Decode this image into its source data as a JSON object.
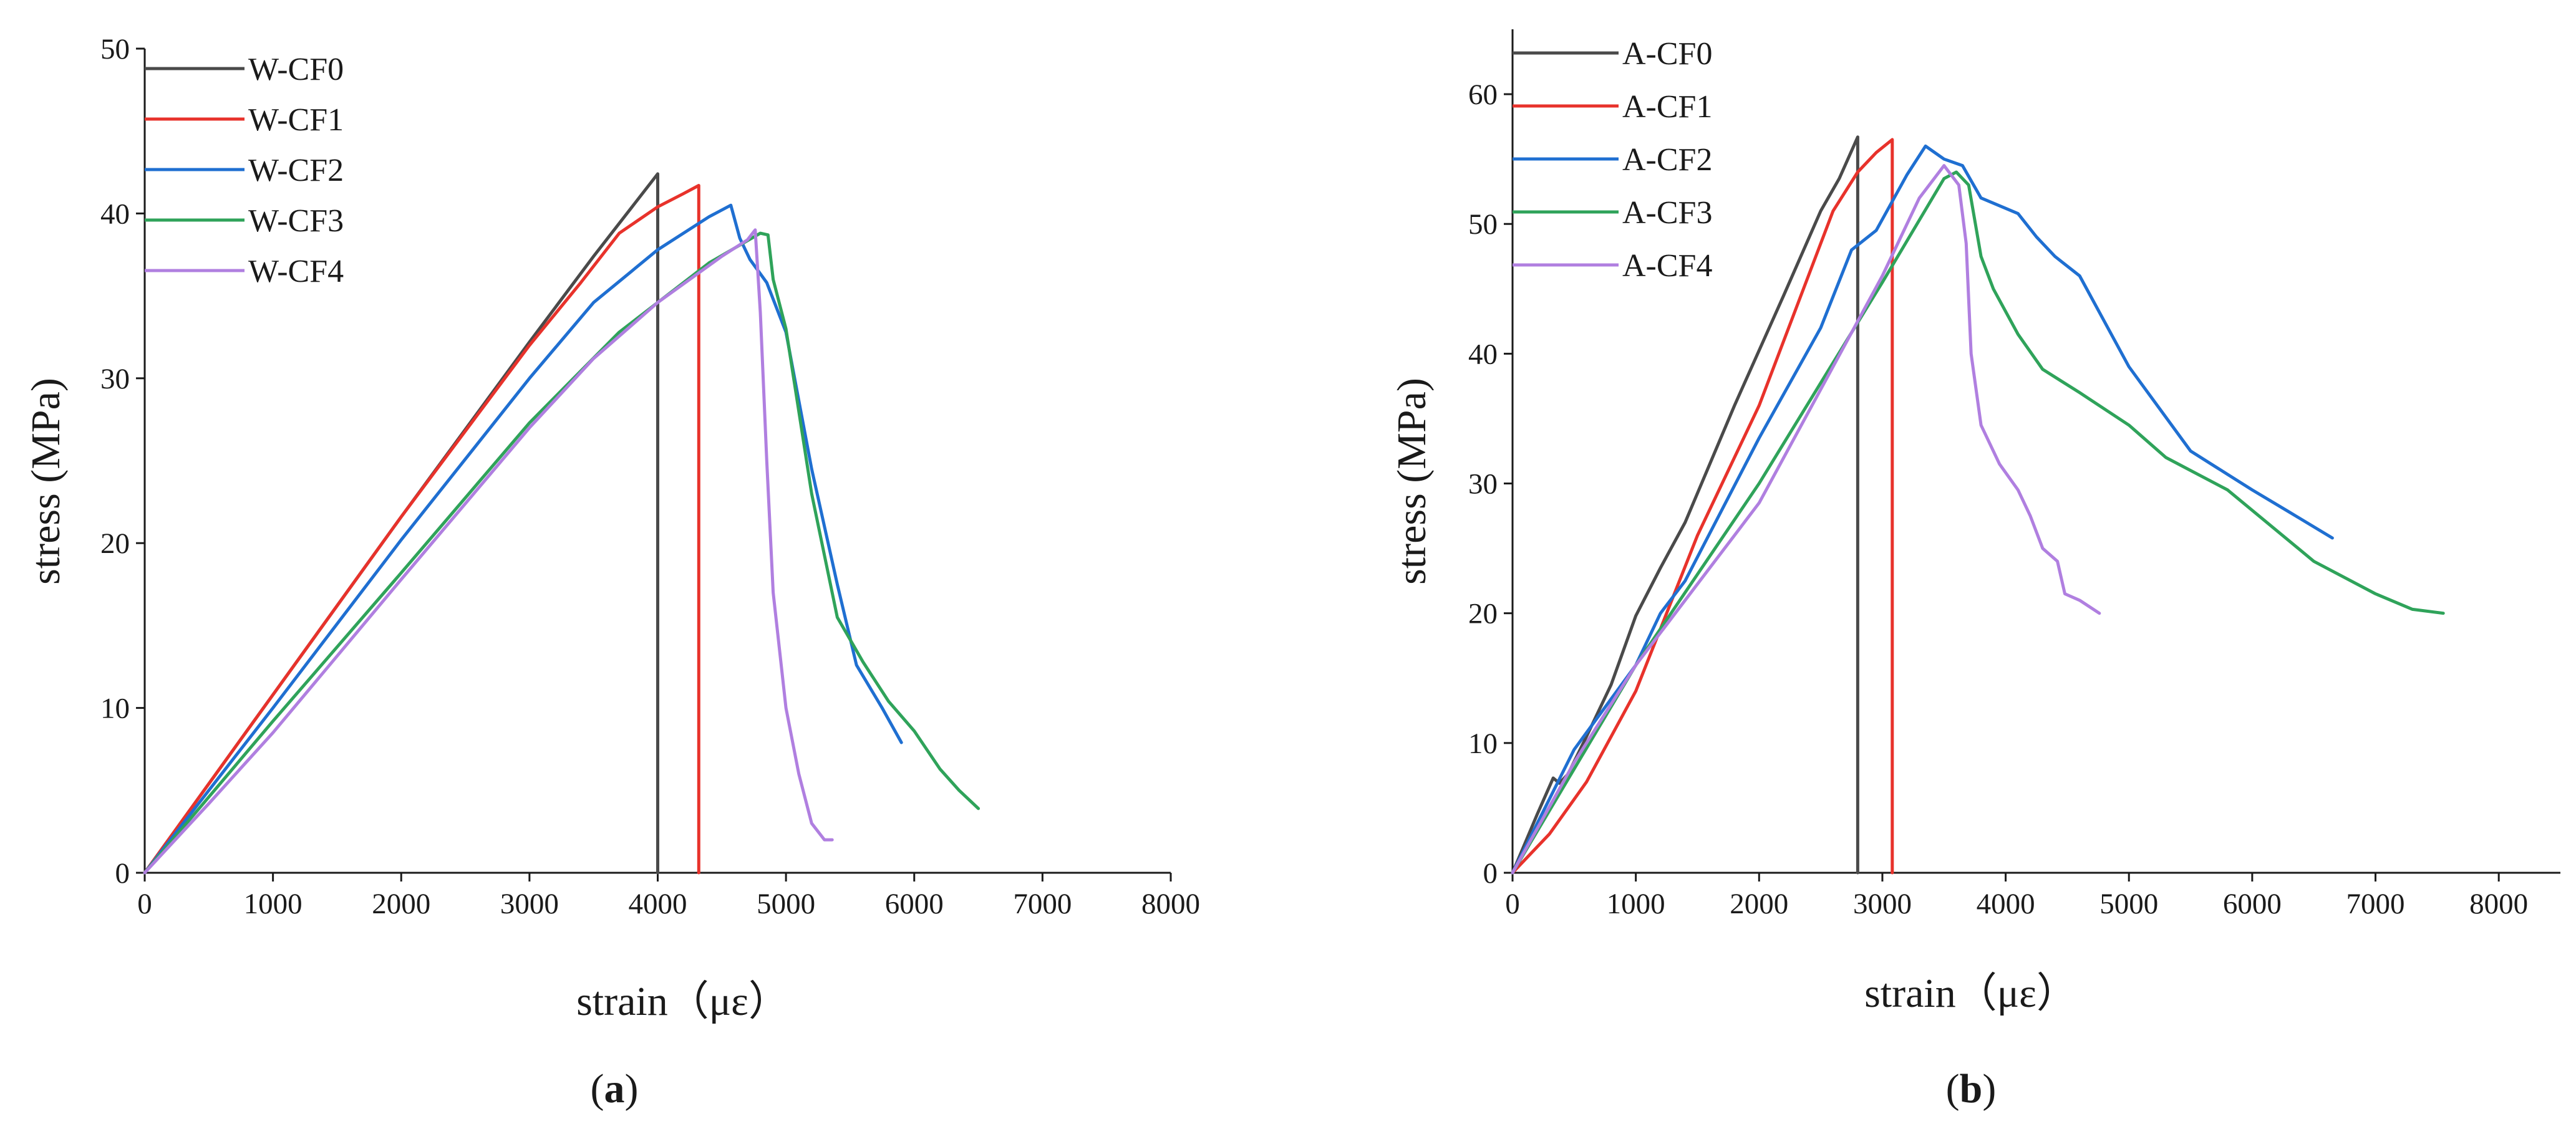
{
  "chart_data": [
    {
      "type": "line",
      "panel": "a",
      "panel_label_prefix": "(",
      "panel_label_letter": "a",
      "panel_label_suffix": ")",
      "xlabel": "strain（με）",
      "ylabel": "stress (MPa)",
      "xlim": [
        0,
        8000
      ],
      "ylim": [
        0,
        50
      ],
      "xticks": [
        0,
        1000,
        2000,
        3000,
        4000,
        5000,
        6000,
        7000,
        8000
      ],
      "yticks": [
        0,
        10,
        20,
        30,
        40,
        50
      ],
      "grid": false,
      "legend_position": "top-left",
      "series": [
        {
          "name": "W-CF0",
          "color": "#4a4a4a",
          "points": [
            [
              0,
              0
            ],
            [
              1000,
              10.8
            ],
            [
              2000,
              21.6
            ],
            [
              3000,
              32.2
            ],
            [
              3500,
              37.4
            ],
            [
              3800,
              40.4
            ],
            [
              4000,
              42.4
            ],
            [
              4000,
              0
            ]
          ]
        },
        {
          "name": "W-CF1",
          "color": "#e8322b",
          "points": [
            [
              0,
              0
            ],
            [
              1000,
              10.8
            ],
            [
              2000,
              21.6
            ],
            [
              3000,
              32.0
            ],
            [
              3400,
              35.8
            ],
            [
              3700,
              38.8
            ],
            [
              4000,
              40.4
            ],
            [
              4200,
              41.2
            ],
            [
              4320,
              41.7
            ],
            [
              4320,
              0
            ]
          ]
        },
        {
          "name": "W-CF2",
          "color": "#1f6fd1",
          "points": [
            [
              0,
              0
            ],
            [
              1000,
              10.0
            ],
            [
              2000,
              20.2
            ],
            [
              3000,
              30.0
            ],
            [
              3500,
              34.6
            ],
            [
              4000,
              37.8
            ],
            [
              4400,
              39.8
            ],
            [
              4570,
              40.5
            ],
            [
              4640,
              38.5
            ],
            [
              4720,
              37.2
            ],
            [
              4850,
              35.8
            ],
            [
              5000,
              32.8
            ],
            [
              5200,
              24.5
            ],
            [
              5400,
              17.5
            ],
            [
              5550,
              12.6
            ],
            [
              5750,
              10.0
            ],
            [
              5900,
              7.9
            ]
          ]
        },
        {
          "name": "W-CF3",
          "color": "#2fa35a",
          "points": [
            [
              0,
              0
            ],
            [
              1000,
              9.2
            ],
            [
              2000,
              18.2
            ],
            [
              3000,
              27.3
            ],
            [
              3700,
              32.8
            ],
            [
              4000,
              34.6
            ],
            [
              4400,
              37.0
            ],
            [
              4800,
              38.8
            ],
            [
              4860,
              38.7
            ],
            [
              4900,
              36.0
            ],
            [
              5000,
              33.0
            ],
            [
              5200,
              23.0
            ],
            [
              5400,
              15.5
            ],
            [
              5600,
              12.8
            ],
            [
              5800,
              10.4
            ],
            [
              6000,
              8.6
            ],
            [
              6200,
              6.3
            ],
            [
              6350,
              5.0
            ],
            [
              6500,
              3.9
            ]
          ]
        },
        {
          "name": "W-CF4",
          "color": "#b07fe0",
          "points": [
            [
              0,
              0
            ],
            [
              500,
              4.2
            ],
            [
              1000,
              8.5
            ],
            [
              2000,
              17.8
            ],
            [
              3000,
              27.0
            ],
            [
              3500,
              31.2
            ],
            [
              4000,
              34.6
            ],
            [
              4500,
              37.4
            ],
            [
              4700,
              38.4
            ],
            [
              4760,
              39.0
            ],
            [
              4800,
              34.0
            ],
            [
              4850,
              25.0
            ],
            [
              4900,
              17.0
            ],
            [
              5000,
              10.0
            ],
            [
              5100,
              6.0
            ],
            [
              5200,
              3.0
            ],
            [
              5300,
              2.0
            ],
            [
              5360,
              2.0
            ]
          ]
        }
      ]
    },
    {
      "type": "line",
      "panel": "b",
      "panel_label_prefix": "(",
      "panel_label_letter": "b",
      "panel_label_suffix": ")",
      "xlabel": "strain（με）",
      "ylabel": "stress (MPa)",
      "xlim": [
        0,
        8500
      ],
      "ylim": [
        0,
        65
      ],
      "xticks": [
        0,
        1000,
        2000,
        3000,
        4000,
        5000,
        6000,
        7000,
        8000
      ],
      "yticks": [
        0,
        10,
        20,
        30,
        40,
        50,
        60
      ],
      "grid": false,
      "legend_position": "top-left",
      "series": [
        {
          "name": "A-CF0",
          "color": "#4a4a4a",
          "points": [
            [
              0,
              0
            ],
            [
              200,
              4.5
            ],
            [
              330,
              7.3
            ],
            [
              380,
              6.9
            ],
            [
              450,
              7.6
            ],
            [
              600,
              10.5
            ],
            [
              800,
              14.5
            ],
            [
              1000,
              19.8
            ],
            [
              1200,
              23.5
            ],
            [
              1400,
              27.0
            ],
            [
              1800,
              36.0
            ],
            [
              2200,
              44.5
            ],
            [
              2500,
              51.0
            ],
            [
              2650,
              53.5
            ],
            [
              2800,
              56.7
            ],
            [
              2800,
              0
            ]
          ]
        },
        {
          "name": "A-CF1",
          "color": "#e8322b",
          "points": [
            [
              0,
              0
            ],
            [
              300,
              3.0
            ],
            [
              600,
              7.0
            ],
            [
              1000,
              14.0
            ],
            [
              1500,
              26.0
            ],
            [
              2000,
              36.0
            ],
            [
              2300,
              43.5
            ],
            [
              2600,
              51.0
            ],
            [
              2800,
              54.0
            ],
            [
              2950,
              55.5
            ],
            [
              3080,
              56.5
            ],
            [
              3080,
              0
            ]
          ]
        },
        {
          "name": "A-CF2",
          "color": "#1f6fd1",
          "points": [
            [
              0,
              0
            ],
            [
              500,
              9.5
            ],
            [
              1000,
              16.0
            ],
            [
              1200,
              20.0
            ],
            [
              1400,
              22.5
            ],
            [
              2000,
              33.5
            ],
            [
              2500,
              42.0
            ],
            [
              2750,
              48.0
            ],
            [
              2950,
              49.5
            ],
            [
              3200,
              53.8
            ],
            [
              3350,
              56.0
            ],
            [
              3500,
              55.0
            ],
            [
              3650,
              54.5
            ],
            [
              3800,
              52.0
            ],
            [
              4100,
              50.8
            ],
            [
              4250,
              49.0
            ],
            [
              4400,
              47.5
            ],
            [
              4600,
              46.0
            ],
            [
              5000,
              39.0
            ],
            [
              5500,
              32.5
            ],
            [
              6000,
              29.5
            ],
            [
              6300,
              27.8
            ],
            [
              6650,
              25.8
            ]
          ]
        },
        {
          "name": "A-CF3",
          "color": "#2fa35a",
          "points": [
            [
              0,
              0
            ],
            [
              500,
              8.0
            ],
            [
              1000,
              16.0
            ],
            [
              2000,
              30.0
            ],
            [
              3000,
              45.5
            ],
            [
              3500,
              53.5
            ],
            [
              3600,
              54.0
            ],
            [
              3700,
              53.0
            ],
            [
              3800,
              47.5
            ],
            [
              3900,
              45.0
            ],
            [
              4100,
              41.5
            ],
            [
              4300,
              38.8
            ],
            [
              4600,
              37.0
            ],
            [
              5000,
              34.5
            ],
            [
              5300,
              32.0
            ],
            [
              5800,
              29.5
            ],
            [
              6500,
              24.0
            ],
            [
              7000,
              21.5
            ],
            [
              7300,
              20.3
            ],
            [
              7550,
              20.0
            ]
          ]
        },
        {
          "name": "A-CF4",
          "color": "#b07fe0",
          "points": [
            [
              0,
              0
            ],
            [
              500,
              8.5
            ],
            [
              1000,
              16.0
            ],
            [
              2000,
              28.5
            ],
            [
              3000,
              46.0
            ],
            [
              3300,
              52.0
            ],
            [
              3500,
              54.5
            ],
            [
              3620,
              53.0
            ],
            [
              3680,
              48.5
            ],
            [
              3720,
              40.0
            ],
            [
              3800,
              34.5
            ],
            [
              3950,
              31.5
            ],
            [
              4100,
              29.5
            ],
            [
              4200,
              27.5
            ],
            [
              4300,
              25.0
            ],
            [
              4420,
              24.0
            ],
            [
              4480,
              21.5
            ],
            [
              4600,
              21.0
            ],
            [
              4760,
              20.0
            ]
          ]
        }
      ]
    }
  ]
}
